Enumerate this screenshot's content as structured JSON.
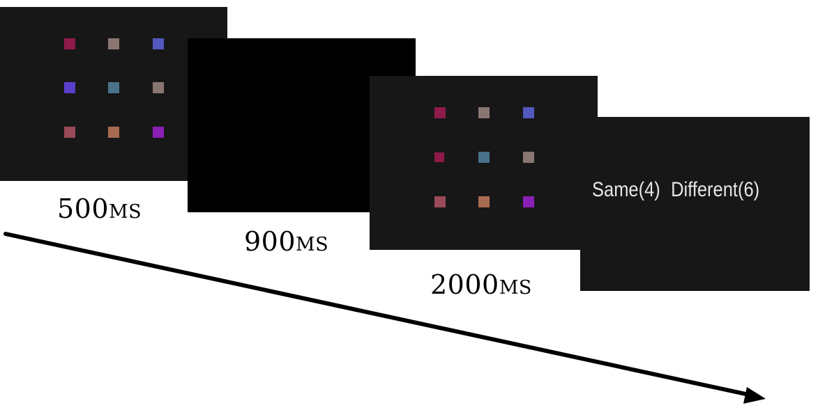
{
  "screens": [
    {
      "name": "memory-array",
      "squares": [
        "#8e1a4a",
        "#8a7671",
        "#5258bd",
        "#5a3fcb",
        "#49728a",
        "#8a7671",
        "#9a4a58",
        "#a96a52",
        "#8a1fb6"
      ]
    },
    {
      "name": "blank-interval",
      "squares": []
    },
    {
      "name": "test-array",
      "squares": [
        "#8e1a4a",
        "#8a7671",
        "#5258bd",
        "#8e1a4a",
        "#49728a",
        "#8a7671",
        "#9a4a58",
        "#a96a52",
        "#8a1fb6"
      ]
    }
  ],
  "response": {
    "same_label": "Same(4)",
    "different_label": "Different(6)"
  },
  "durations": {
    "first": "500ms",
    "second": "900ms",
    "third": "2000ms"
  },
  "colors": {
    "screen_gray": "#171717",
    "screen_black": "#000000",
    "arrow": "#000000"
  }
}
